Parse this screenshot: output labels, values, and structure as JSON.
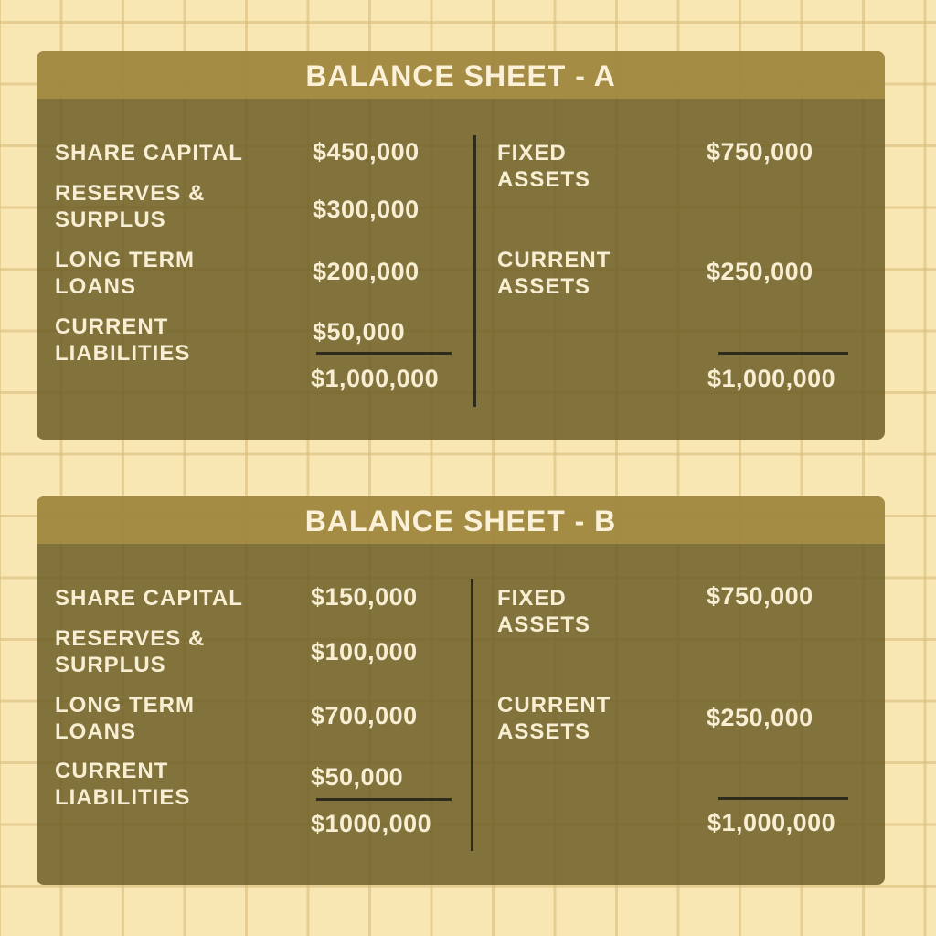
{
  "sheets": [
    {
      "title": "BALANCE SHEET - A",
      "liabilities": [
        {
          "label": "SHARE CAPITAL",
          "value": "$450,000"
        },
        {
          "label": "RESERVES &\nSURPLUS",
          "value": "$300,000"
        },
        {
          "label": "LONG TERM\nLOANS",
          "value": "$200,000"
        },
        {
          "label": "CURRENT\nLIABILITIES",
          "value": "$50,000"
        }
      ],
      "liabilities_total": "$1,000,000",
      "assets": [
        {
          "label": "FIXED\nASSETS",
          "value": "$750,000"
        },
        {
          "label": "CURRENT\nASSETS",
          "value": "$250,000"
        }
      ],
      "assets_total": "$1,000,000"
    },
    {
      "title": "BALANCE SHEET - B",
      "liabilities": [
        {
          "label": "SHARE CAPITAL",
          "value": "$150,000"
        },
        {
          "label": "RESERVES &\nSURPLUS",
          "value": "$100,000"
        },
        {
          "label": "LONG TERM\nLOANS",
          "value": "$700,000"
        },
        {
          "label": "CURRENT\nLIABILITIES",
          "value": "$50,000"
        }
      ],
      "liabilities_total": "$1000,000",
      "assets": [
        {
          "label": "FIXED\nASSETS",
          "value": "$750,000"
        },
        {
          "label": "CURRENT\nASSETS",
          "value": "$250,000"
        }
      ],
      "assets_total": "$1,000,000"
    }
  ]
}
